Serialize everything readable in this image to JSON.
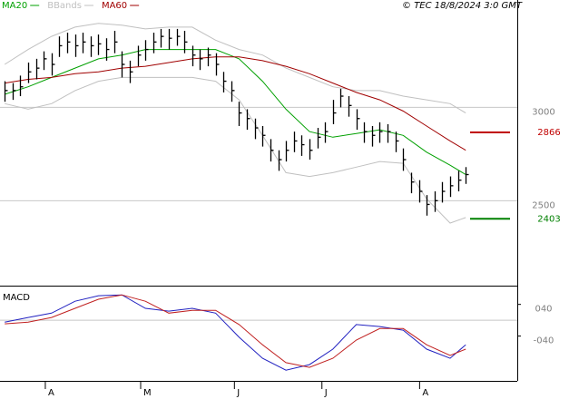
{
  "chart_data": [
    {
      "type": "ohlc",
      "credit": "© TEC 18/8/2024 3:0 GMT",
      "xlim": [
        -0.6,
        65.6
      ],
      "ylim": [
        2045,
        3575
      ],
      "yticks": [
        2500,
        3000
      ],
      "grid": true,
      "bar_color": "#000000",
      "high": [
        3140,
        3130,
        3170,
        3240,
        3260,
        3300,
        3290,
        3380,
        3400,
        3390,
        3400,
        3380,
        3390,
        3370,
        3410,
        3300,
        3250,
        3330,
        3360,
        3400,
        3420,
        3420,
        3420,
        3410,
        3330,
        3310,
        3320,
        3290,
        3190,
        3140,
        3030,
        2990,
        2940,
        2900,
        2830,
        2770,
        2820,
        2870,
        2850,
        2830,
        2890,
        2920,
        3040,
        3100,
        3060,
        2990,
        2920,
        2900,
        2920,
        2910,
        2870,
        2780,
        2650,
        2610,
        2530,
        2550,
        2600,
        2630,
        2660,
        2680
      ],
      "low": [
        3030,
        3040,
        3060,
        3130,
        3150,
        3200,
        3170,
        3270,
        3290,
        3270,
        3290,
        3270,
        3280,
        3250,
        3290,
        3160,
        3130,
        3220,
        3250,
        3290,
        3320,
        3310,
        3330,
        3290,
        3220,
        3200,
        3220,
        3170,
        3080,
        3030,
        2900,
        2880,
        2830,
        2790,
        2710,
        2660,
        2710,
        2760,
        2740,
        2720,
        2780,
        2810,
        2910,
        3000,
        2950,
        2880,
        2810,
        2790,
        2810,
        2810,
        2760,
        2660,
        2540,
        2490,
        2420,
        2440,
        2490,
        2520,
        2550,
        2590
      ],
      "close": [
        3090,
        3090,
        3110,
        3190,
        3210,
        3260,
        3230,
        3330,
        3350,
        3330,
        3350,
        3330,
        3340,
        3310,
        3350,
        3230,
        3190,
        3280,
        3310,
        3350,
        3380,
        3370,
        3380,
        3350,
        3280,
        3260,
        3280,
        3230,
        3140,
        3090,
        2970,
        2940,
        2890,
        2850,
        2770,
        2720,
        2770,
        2820,
        2800,
        2770,
        2840,
        2870,
        2970,
        3060,
        3010,
        2940,
        2870,
        2850,
        2870,
        2870,
        2820,
        2720,
        2600,
        2550,
        2480,
        2500,
        2550,
        2580,
        2610,
        2640
      ],
      "series": [
        {
          "name": "MA20",
          "color": "#00a000",
          "x": [
            0,
            3,
            6,
            9,
            12,
            15,
            18,
            21,
            24,
            27,
            30,
            33,
            36,
            39,
            42,
            45,
            48,
            51,
            54,
            57,
            59
          ],
          "values": [
            3070,
            3110,
            3160,
            3210,
            3260,
            3280,
            3310,
            3310,
            3310,
            3310,
            3260,
            3140,
            2990,
            2870,
            2840,
            2860,
            2880,
            2850,
            2760,
            2690,
            2640
          ]
        },
        {
          "name": "BBands",
          "color": "#c0c0c0",
          "x": [
            0,
            3,
            6,
            9,
            12,
            15,
            18,
            21,
            24,
            27,
            30,
            33,
            36,
            39,
            42,
            45,
            48,
            51,
            54,
            57,
            59
          ],
          "upper": [
            3230,
            3310,
            3380,
            3430,
            3450,
            3440,
            3420,
            3430,
            3430,
            3360,
            3310,
            3280,
            3210,
            3160,
            3110,
            3090,
            3090,
            3060,
            3040,
            3020,
            2970
          ],
          "lower": [
            3020,
            2990,
            3020,
            3090,
            3140,
            3160,
            3160,
            3160,
            3160,
            3140,
            3040,
            2850,
            2650,
            2630,
            2650,
            2680,
            2710,
            2700,
            2510,
            2380,
            2410
          ]
        },
        {
          "name": "MA60",
          "color": "#a00000",
          "x": [
            0,
            3,
            6,
            9,
            12,
            15,
            18,
            21,
            24,
            27,
            30,
            33,
            36,
            39,
            42,
            45,
            48,
            51,
            54,
            57,
            59
          ],
          "values": [
            3130,
            3150,
            3160,
            3180,
            3190,
            3210,
            3220,
            3240,
            3260,
            3270,
            3270,
            3250,
            3220,
            3180,
            3130,
            3080,
            3040,
            2980,
            2900,
            2820,
            2770
          ]
        }
      ],
      "annotations": [
        {
          "value": 2866,
          "color": "#c00000"
        },
        {
          "value": 2403,
          "color": "#008000"
        }
      ]
    },
    {
      "type": "line",
      "title": "MACD",
      "xlim": [
        -0.6,
        65.6
      ],
      "ylim": [
        -153,
        85
      ],
      "yticks": [
        {
          "value": 40,
          "label": "040"
        },
        {
          "value": -40,
          "label": "-040"
        }
      ],
      "zero_line": true,
      "xticks": [
        {
          "value": 5.2,
          "label": "A"
        },
        {
          "value": 17.4,
          "label": "M"
        },
        {
          "value": 29.4,
          "label": "J"
        },
        {
          "value": 40.6,
          "label": "J"
        },
        {
          "value": 53.1,
          "label": "A"
        }
      ],
      "series": [
        {
          "color": "#2020c0",
          "x": [
            0,
            3,
            6,
            9,
            12,
            15,
            18,
            21,
            24,
            27,
            30,
            33,
            36,
            39,
            42,
            45,
            48,
            51,
            54,
            57,
            59
          ],
          "values": [
            -5,
            7,
            18,
            48,
            62,
            64,
            30,
            23,
            30,
            18,
            -43,
            -96,
            -126,
            -112,
            -73,
            -11,
            -16,
            -25,
            -73,
            -96,
            -62
          ]
        },
        {
          "color": "#c02020",
          "x": [
            0,
            3,
            6,
            9,
            12,
            15,
            18,
            21,
            24,
            27,
            30,
            33,
            36,
            39,
            42,
            45,
            48,
            51,
            54,
            57,
            59
          ],
          "values": [
            -9,
            -5,
            7,
            30,
            53,
            64,
            48,
            18,
            25,
            25,
            -11,
            -62,
            -107,
            -119,
            -96,
            -50,
            -21,
            -21,
            -62,
            -89,
            -73
          ]
        }
      ]
    }
  ]
}
